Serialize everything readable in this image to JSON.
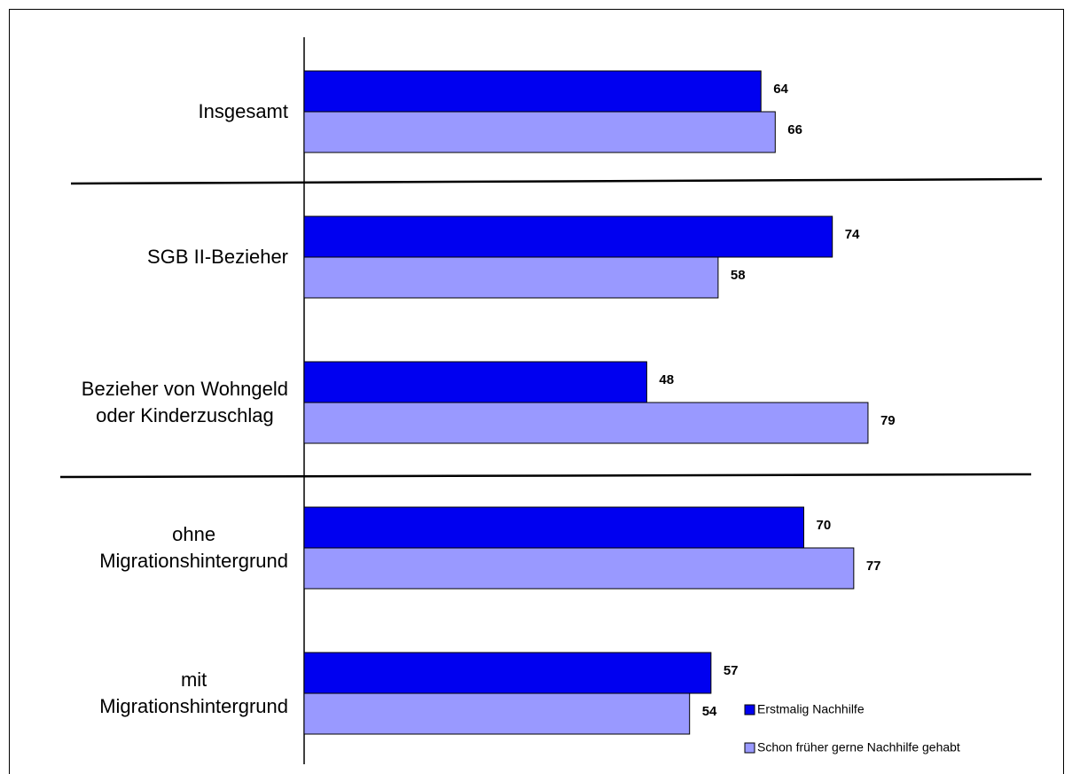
{
  "chart_data": {
    "type": "bar",
    "orientation": "horizontal",
    "categories": [
      "Insgesamt",
      "SGB II-Bezieher",
      "Bezieher von Wohngeld\noder Kinderzuschlag",
      "ohne\nMigrationshintergrund",
      "mit\nMigrationshintergrund"
    ],
    "series": [
      {
        "name": "Erstmalig Nachhilfe",
        "color": "#0000f0",
        "values": [
          64,
          74,
          48,
          70,
          57
        ]
      },
      {
        "name": "Schon früher gerne Nachhilfe gehabt",
        "color": "#9999ff",
        "values": [
          66,
          58,
          79,
          77,
          54
        ]
      }
    ]
  }
}
